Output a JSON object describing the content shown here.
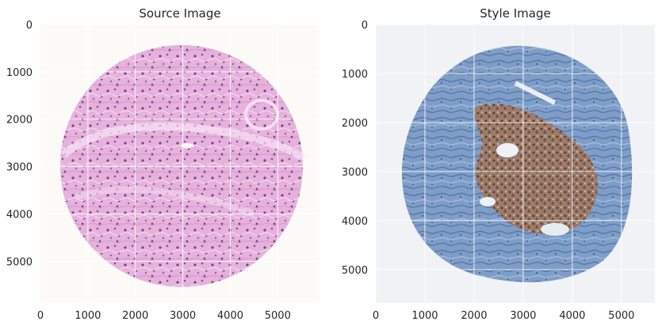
{
  "chart_data": [
    {
      "type": "image",
      "title": "Source Image",
      "xticks": [
        0,
        1000,
        2000,
        3000,
        4000,
        5000
      ],
      "yticks": [
        0,
        1000,
        2000,
        3000,
        4000,
        5000
      ],
      "xlim": [
        0,
        5880
      ],
      "ylim": [
        5880,
        0
      ],
      "grid": true,
      "image": {
        "background": "#fbfaf7",
        "tissue_colors": [
          "#e3a7d8",
          "#c77fc0",
          "#8a4f9b",
          "#f1d3ec"
        ],
        "stain": "H&E",
        "core_center": [
          3000,
          3000
        ],
        "core_radius": 2400
      }
    },
    {
      "type": "image",
      "title": "Style Image",
      "xticks": [
        0,
        1000,
        2000,
        3000,
        4000,
        5000
      ],
      "yticks": [
        0,
        1000,
        2000,
        3000,
        4000,
        5000
      ],
      "xlim": [
        0,
        5680
      ],
      "ylim": [
        5680,
        0
      ],
      "grid": true,
      "image": {
        "background": "#f1f2f6",
        "tissue_colors": [
          "#6d8fbc",
          "#4d6ea3",
          "#8b5a3a",
          "#a9bfd9"
        ],
        "stain": "IHC",
        "core_center": [
          2900,
          2700
        ],
        "core_radius": 2500
      }
    }
  ]
}
